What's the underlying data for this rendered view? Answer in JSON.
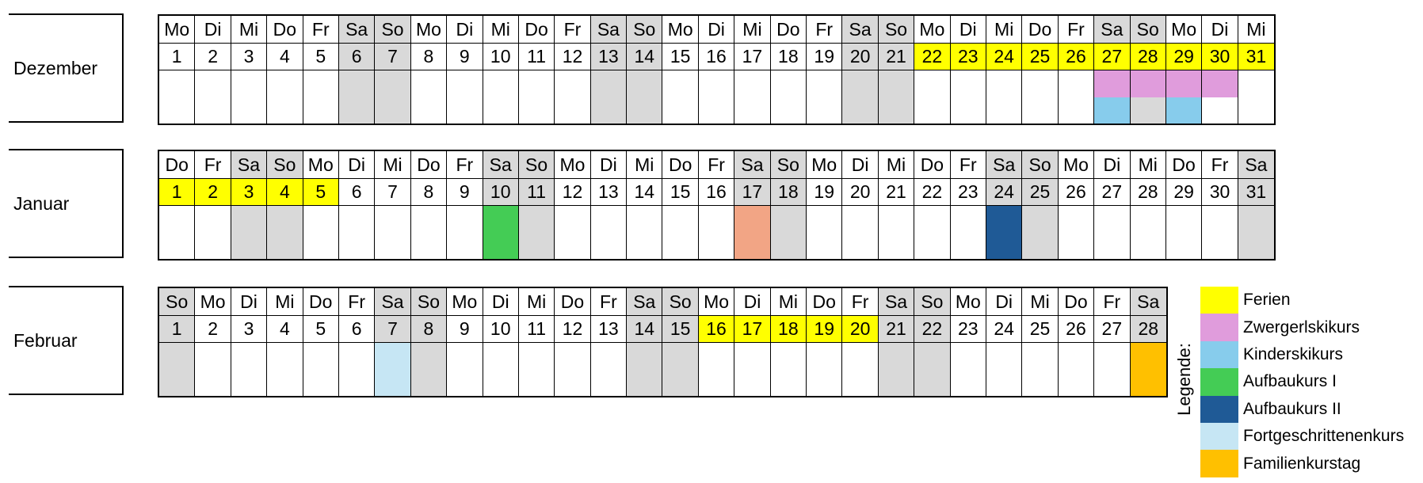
{
  "colors": {
    "weekend": "#d9d9d9",
    "ferien": "#ffff00",
    "zwergerl": "#e09cdc",
    "kinder": "#87ccec",
    "aufbau1": "#44cc55",
    "aufbau2": "#1f5a96",
    "fortgeschritten": "#c6e6f4",
    "familien": "#ffc000",
    "salmon": "#f2a585",
    "white": "#ffffff"
  },
  "months": [
    {
      "name": "Dezember",
      "weekdays": [
        "Mo",
        "Di",
        "Mi",
        "Do",
        "Fr",
        "Sa",
        "So",
        "Mo",
        "Di",
        "Mi",
        "Do",
        "Fr",
        "Sa",
        "So",
        "Mo",
        "Di",
        "Mi",
        "Do",
        "Fr",
        "Sa",
        "So",
        "Mo",
        "Di",
        "Mi",
        "Do",
        "Fr",
        "Sa",
        "So",
        "Mo",
        "Di",
        "Mi"
      ],
      "days": [
        "1",
        "2",
        "3",
        "4",
        "5",
        "6",
        "7",
        "8",
        "9",
        "10",
        "11",
        "12",
        "13",
        "14",
        "15",
        "16",
        "17",
        "18",
        "19",
        "20",
        "21",
        "22",
        "23",
        "24",
        "25",
        "26",
        "27",
        "28",
        "29",
        "30",
        "31"
      ],
      "ferien": [
        22,
        23,
        24,
        25,
        26,
        27,
        28,
        29,
        30,
        31
      ],
      "events": [
        {
          "day": 27,
          "top": "zwergerl",
          "bottom": "kinder"
        },
        {
          "day": 28,
          "top": "zwergerl",
          "bottom": "weekend"
        },
        {
          "day": 29,
          "top": "zwergerl",
          "bottom": "kinder"
        },
        {
          "day": 30,
          "top": "zwergerl",
          "bottom": "white"
        }
      ]
    },
    {
      "name": "Januar",
      "weekdays": [
        "Do",
        "Fr",
        "Sa",
        "So",
        "Mo",
        "Di",
        "Mi",
        "Do",
        "Fr",
        "Sa",
        "So",
        "Mo",
        "Di",
        "Mi",
        "Do",
        "Fr",
        "Sa",
        "So",
        "Mo",
        "Di",
        "Mi",
        "Do",
        "Fr",
        "Sa",
        "So",
        "Mo",
        "Di",
        "Mi",
        "Do",
        "Fr",
        "Sa"
      ],
      "days": [
        "1",
        "2",
        "3",
        "4",
        "5",
        "6",
        "7",
        "8",
        "9",
        "10",
        "11",
        "12",
        "13",
        "14",
        "15",
        "16",
        "17",
        "18",
        "19",
        "20",
        "21",
        "22",
        "23",
        "24",
        "25",
        "26",
        "27",
        "28",
        "29",
        "30",
        "31"
      ],
      "ferien": [
        1,
        2,
        3,
        4,
        5
      ],
      "events": [
        {
          "day": 10,
          "top": "aufbau1",
          "bottom": "aufbau1"
        },
        {
          "day": 17,
          "top": "salmon",
          "bottom": "salmon"
        },
        {
          "day": 24,
          "top": "aufbau2",
          "bottom": "aufbau2"
        }
      ]
    },
    {
      "name": "Februar",
      "weekdays": [
        "So",
        "Mo",
        "Di",
        "Mi",
        "Do",
        "Fr",
        "Sa",
        "So",
        "Mo",
        "Di",
        "Mi",
        "Do",
        "Fr",
        "Sa",
        "So",
        "Mo",
        "Di",
        "Mi",
        "Do",
        "Fr",
        "Sa",
        "So",
        "Mo",
        "Di",
        "Mi",
        "Do",
        "Fr",
        "Sa"
      ],
      "days": [
        "1",
        "2",
        "3",
        "4",
        "5",
        "6",
        "7",
        "8",
        "9",
        "10",
        "11",
        "12",
        "13",
        "14",
        "15",
        "16",
        "17",
        "18",
        "19",
        "20",
        "21",
        "22",
        "23",
        "24",
        "25",
        "26",
        "27",
        "28"
      ],
      "ferien": [
        16,
        17,
        18,
        19,
        20
      ],
      "events": [
        {
          "day": 7,
          "top": "fortgeschritten",
          "bottom": "fortgeschritten"
        },
        {
          "day": 28,
          "top": "familien",
          "bottom": "familien"
        }
      ]
    }
  ],
  "legend": {
    "title": "Legende:",
    "items": [
      {
        "label": "Ferien",
        "color": "ferien"
      },
      {
        "label": "Zwergerlskikurs",
        "color": "zwergerl"
      },
      {
        "label": "Kinderskikurs",
        "color": "kinder"
      },
      {
        "label": "Aufbaukurs I",
        "color": "aufbau1"
      },
      {
        "label": "Aufbaukurs II",
        "color": "aufbau2"
      },
      {
        "label": "Fortgeschrittenenkurs",
        "color": "fortgeschritten"
      },
      {
        "label": "Familienkurstag",
        "color": "familien"
      }
    ]
  }
}
